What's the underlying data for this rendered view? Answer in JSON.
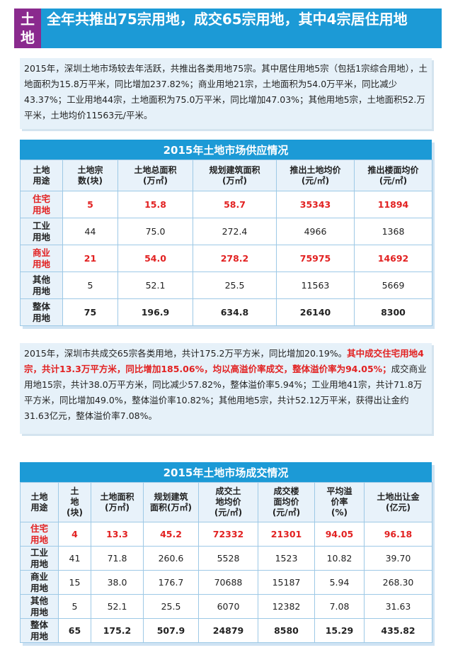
{
  "header": {
    "badge": [
      "土",
      "地"
    ],
    "title": "全年共推出75宗用地，成交65宗用地，其中4宗居住用地"
  },
  "paragraph1": "2015年，深圳土地市场较去年活跃，共推出各类用地75宗。其中居住用地5宗（包括1宗综合用地），土地面积为15.8万平米，同比增加237.82%；商业用地21宗，土地面积为54.0万平米，同比减少43.37%；工业用地44宗，土地面积为75.0万平米，同比增加47.03%；其他用地5宗，土地面积52.万平米，土地均价11563元/平米。",
  "supply": {
    "title": "2015年土地市场供应情况",
    "headers": [
      "土地\n用途",
      "土地宗\n数(块)",
      "土地总面积\n(万㎡)",
      "规划建筑面积\n(万㎡)",
      "推出土地均价\n(元/㎡)",
      "推出楼面均价\n(元/㎡)"
    ],
    "rows": [
      {
        "label": "住宅\n用地",
        "values": [
          "5",
          "15.8",
          "58.7",
          "35343",
          "11894"
        ]
      },
      {
        "label": "工业\n用地",
        "values": [
          "44",
          "75.0",
          "272.4",
          "4966",
          "1368"
        ]
      },
      {
        "label": "商业\n用地",
        "values": [
          "21",
          "54.0",
          "278.2",
          "75975",
          "14692"
        ]
      },
      {
        "label": "其他\n用地",
        "values": [
          "5",
          "52.1",
          "25.5",
          "11563",
          "5669"
        ]
      },
      {
        "label": "整体\n用地",
        "values": [
          "75",
          "196.9",
          "634.8",
          "26140",
          "8300"
        ]
      }
    ]
  },
  "paragraph2": {
    "normal1": "2015年，深圳市共成交65宗各类用地，共计175.2万平方米，同比增加20.19%。",
    "red": "其中成交住宅用地4宗，共计13.3万平方米，同比增加185.06%，均以高溢价率成交，整体溢价率为94.05%；",
    "normal2": "成交商业用地15宗，共计38.0万平方米，同比减少57.82%，整体溢价率5.94%；工业用地41宗，共计71.8万平方米，同比增加49.0%，整体溢价率10.82%；其他用地5宗，共计52.12万平米，获得出让金约31.63亿元，整体溢价率7.08%。"
  },
  "deals": {
    "title": "2015年土地市场成交情况",
    "headers": [
      "土地\n用途",
      "土\n地\n(块)",
      "土地面积\n(万㎡)",
      "规划建筑\n面积(万㎡)",
      "成交土\n地均价\n(元/㎡)",
      "成交楼\n面均价\n(元/㎡)",
      "平均溢\n价率\n(%)",
      "土地出让金\n(亿元)"
    ],
    "rows": [
      {
        "label": "住宅\n用地",
        "values": [
          "4",
          "13.3",
          "45.2",
          "72332",
          "21301",
          "94.05",
          "96.18"
        ]
      },
      {
        "label": "工业\n用地",
        "values": [
          "41",
          "71.8",
          "260.6",
          "5528",
          "1523",
          "10.82",
          "39.70"
        ]
      },
      {
        "label": "商业\n用地",
        "values": [
          "15",
          "38.0",
          "176.7",
          "70688",
          "15187",
          "5.94",
          "268.30"
        ]
      },
      {
        "label": "其他\n用地",
        "values": [
          "5",
          "52.1",
          "25.5",
          "6070",
          "12382",
          "7.08",
          "31.63"
        ]
      },
      {
        "label": "整体\n用地",
        "values": [
          "65",
          "175.2",
          "507.9",
          "24879",
          "8580",
          "15.29",
          "435.82"
        ]
      }
    ]
  }
}
